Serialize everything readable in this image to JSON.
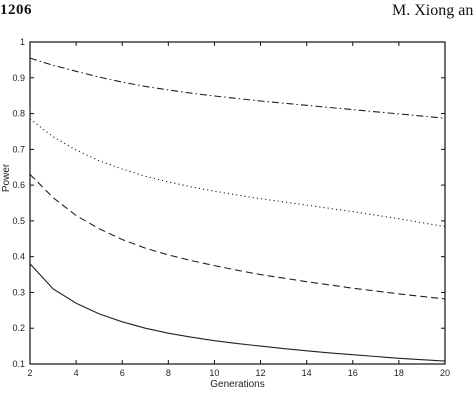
{
  "header": {
    "page_number": "1206",
    "running_head": "M. Xiong an"
  },
  "chart_data": {
    "type": "line",
    "title": "",
    "xlabel": "Generations",
    "ylabel": "Power",
    "xlim": [
      2,
      20
    ],
    "ylim": [
      0.1,
      1
    ],
    "x_ticks": [
      2,
      4,
      6,
      8,
      10,
      12,
      14,
      16,
      18,
      20
    ],
    "y_ticks": [
      0.1,
      0.2,
      0.3,
      0.4,
      0.5,
      0.6,
      0.7,
      0.8,
      0.9,
      1
    ],
    "x": [
      2,
      3,
      4,
      5,
      6,
      7,
      8,
      9,
      10,
      11,
      12,
      13,
      14,
      15,
      16,
      17,
      18,
      19,
      20
    ],
    "grid": false,
    "legend": "none",
    "series": [
      {
        "line_style": "dash-dot",
        "color": "#222222",
        "values": [
          0.955,
          0.935,
          0.918,
          0.902,
          0.888,
          0.876,
          0.866,
          0.857,
          0.849,
          0.842,
          0.835,
          0.829,
          0.823,
          0.817,
          0.811,
          0.805,
          0.799,
          0.793,
          0.787
        ]
      },
      {
        "line_style": "dotted",
        "color": "#222222",
        "values": [
          0.785,
          0.735,
          0.698,
          0.668,
          0.645,
          0.625,
          0.609,
          0.595,
          0.583,
          0.572,
          0.562,
          0.553,
          0.544,
          0.535,
          0.526,
          0.516,
          0.506,
          0.495,
          0.484
        ]
      },
      {
        "line_style": "dashed",
        "color": "#222222",
        "values": [
          0.63,
          0.565,
          0.515,
          0.478,
          0.448,
          0.424,
          0.405,
          0.389,
          0.375,
          0.362,
          0.35,
          0.34,
          0.33,
          0.321,
          0.312,
          0.304,
          0.296,
          0.289,
          0.282
        ]
      },
      {
        "line_style": "solid",
        "color": "#222222",
        "values": [
          0.38,
          0.31,
          0.27,
          0.24,
          0.218,
          0.2,
          0.186,
          0.175,
          0.165,
          0.157,
          0.15,
          0.143,
          0.137,
          0.131,
          0.126,
          0.121,
          0.116,
          0.112,
          0.108
        ]
      }
    ]
  }
}
